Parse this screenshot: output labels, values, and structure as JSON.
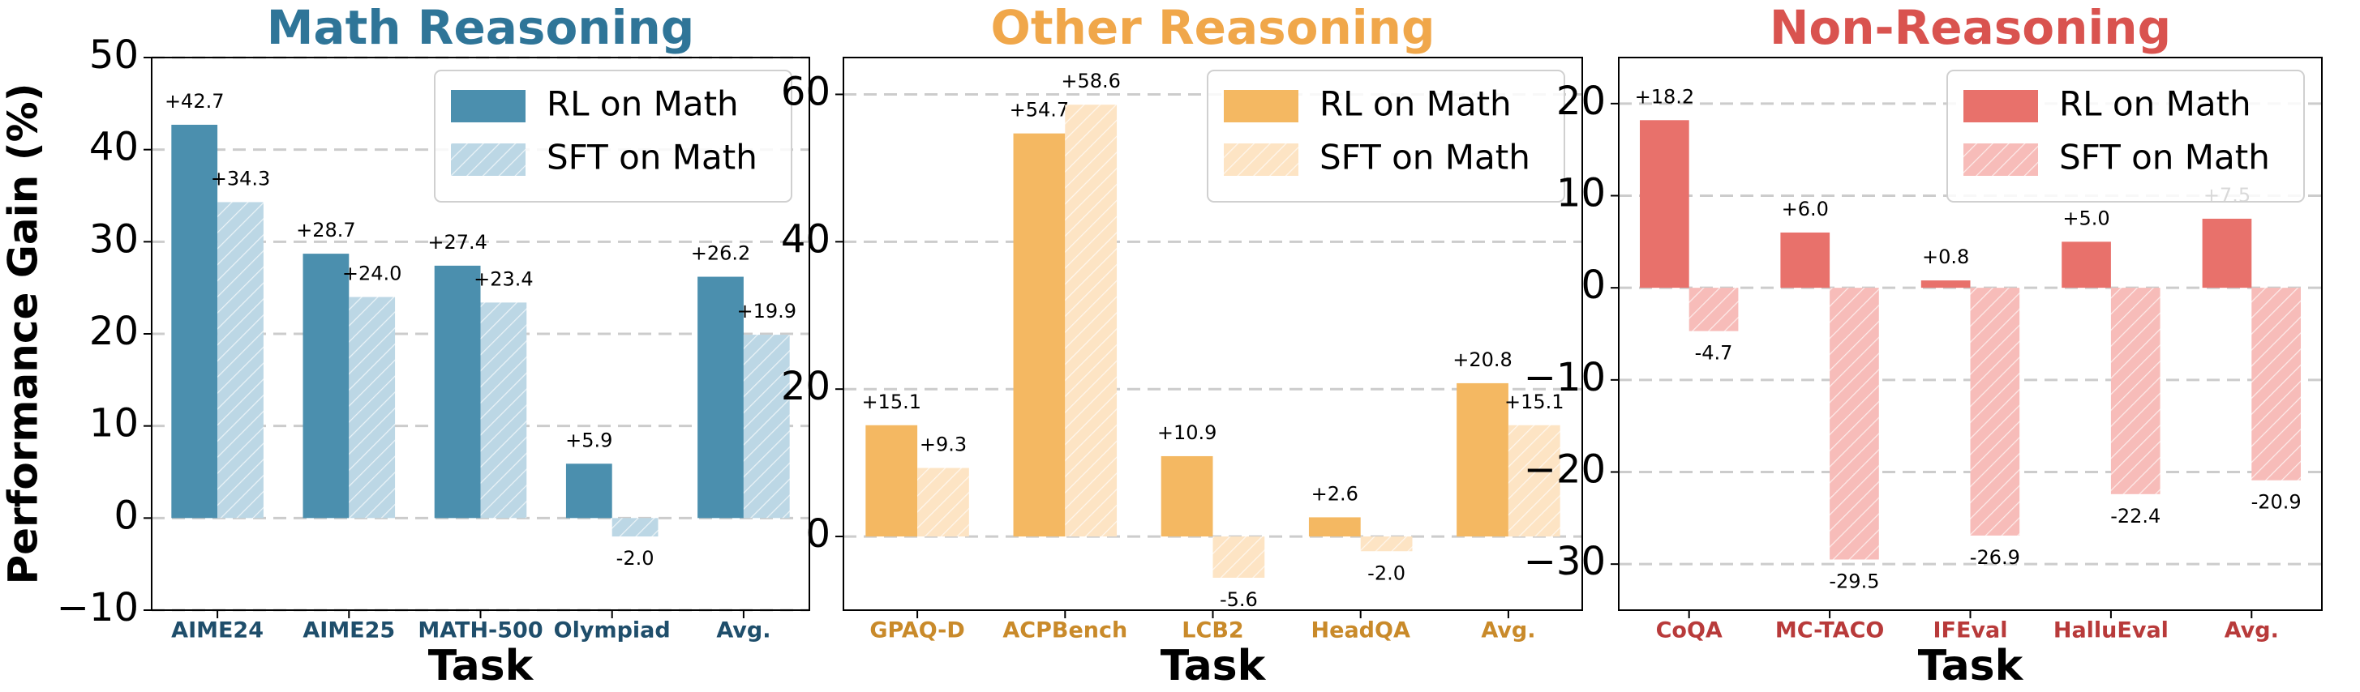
{
  "chart_data": [
    {
      "type": "bar",
      "title": "Math Reasoning",
      "title_color": "#2f7598",
      "tick_color": "#1f4e6b",
      "y_label": "Performance Gain (%)",
      "x_label": "Task",
      "categories": [
        "AIME24",
        "AIME25",
        "MATH-500",
        "Olympiad",
        "Avg."
      ],
      "series": [
        {
          "name": "RL on Math",
          "color": "#4b8fae",
          "values": [
            42.7,
            28.7,
            27.4,
            5.9,
            26.2
          ],
          "value_labels": [
            "+42.7",
            "+28.7",
            "+27.4",
            "+5.9",
            "+26.2"
          ]
        },
        {
          "name": "SFT on Math",
          "color": "#bcd7e5",
          "hatch": true,
          "values": [
            34.3,
            24.0,
            23.4,
            -2.0,
            19.9
          ],
          "value_labels": [
            "+34.3",
            "+24.0",
            "+23.4",
            "-2.0",
            "+19.9"
          ]
        }
      ],
      "ylim": [
        -10,
        50
      ],
      "yticks": [
        {
          "value": -10,
          "label": "−10"
        },
        0,
        10,
        20,
        30,
        40,
        50
      ],
      "grid": true,
      "legend": "upper right"
    },
    {
      "type": "bar",
      "title": "Other Reasoning",
      "title_color": "#f0a74a",
      "tick_color": "#c98a2a",
      "x_label": "Task",
      "categories": [
        "GPAQ-D",
        "ACPBench",
        "LCB2",
        "HeadQA",
        "Avg."
      ],
      "series": [
        {
          "name": "RL on Math",
          "color": "#f4b862",
          "values": [
            15.1,
            54.7,
            10.9,
            2.6,
            20.8
          ],
          "value_labels": [
            "+15.1",
            "+54.7",
            "+10.9",
            "+2.6",
            "+20.8"
          ]
        },
        {
          "name": "SFT on Math",
          "color": "#fde4c4",
          "hatch": true,
          "values": [
            9.3,
            58.6,
            -5.6,
            -2.0,
            15.1
          ],
          "value_labels": [
            "+9.3",
            "+58.6",
            "-5.6",
            "-2.0",
            "+15.1"
          ]
        }
      ],
      "ylim": [
        -10,
        65
      ],
      "yticks": [
        0,
        20,
        40,
        60
      ],
      "grid": true,
      "legend": "upper right"
    },
    {
      "type": "bar",
      "title": "Non-Reasoning",
      "title_color": "#d9534f",
      "tick_color": "#b83a3a",
      "x_label": "Task",
      "categories": [
        "CoQA",
        "MC-TACO",
        "IFEval",
        "HalluEval",
        "Avg."
      ],
      "series": [
        {
          "name": "RL on Math",
          "color": "#e8716b",
          "values": [
            18.2,
            6.0,
            0.8,
            5.0,
            7.5
          ],
          "value_labels": [
            "+18.2",
            "+6.0",
            "+0.8",
            "+5.0",
            "+7.5"
          ]
        },
        {
          "name": "SFT on Math",
          "color": "#f7bcb9",
          "hatch": true,
          "values": [
            -4.7,
            -29.5,
            -26.9,
            -22.4,
            -20.9
          ]
        }
      ],
      "ylim": [
        -35,
        25
      ],
      "yticks": [
        {
          "value": -30,
          "label": "−30"
        },
        {
          "value": -20,
          "label": "−20"
        },
        {
          "value": -10,
          "label": "−10"
        },
        0,
        10,
        20
      ],
      "grid": true,
      "legend": "upper right"
    }
  ]
}
